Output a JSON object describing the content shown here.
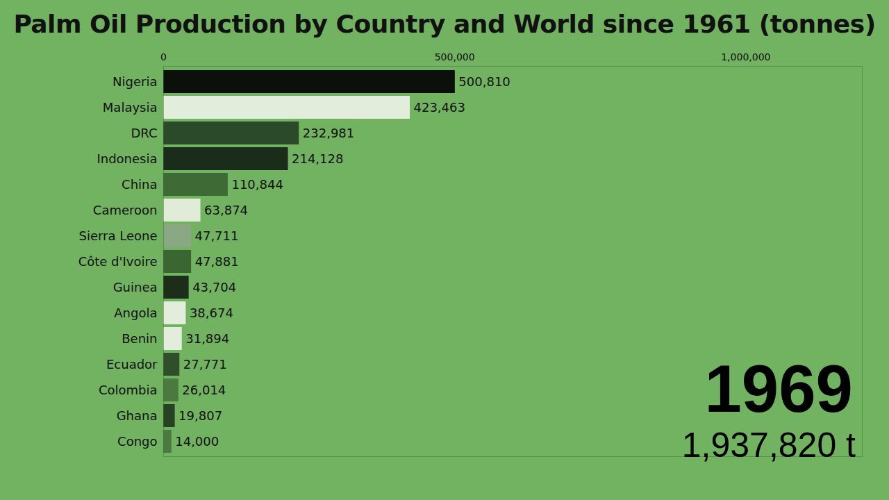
{
  "chart_data": {
    "type": "bar",
    "orientation": "horizontal",
    "title": "Palm Oil Production by Country and World since 1961 (tonnes)",
    "annotations": [
      "1969",
      "1,937,820 t"
    ],
    "categories": [
      "Nigeria",
      "Malaysia",
      "DRC",
      "Indonesia",
      "China",
      "Cameroon",
      "Sierra Leone",
      "Côte d'Ivoire",
      "Guinea",
      "Angola",
      "Benin",
      "Ecuador",
      "Colombia",
      "Ghana",
      "Congo"
    ],
    "values": [
      500810,
      423463,
      232981,
      214128,
      110844,
      63874,
      47711,
      47881,
      43704,
      38674,
      31894,
      27771,
      26014,
      19807,
      14000
    ],
    "value_labels": [
      "500,810",
      "423,463",
      "232,981",
      "214,128",
      "110,844",
      "63,874",
      "47,711",
      "47,881",
      "43,704",
      "38,674",
      "31,894",
      "27,771",
      "26,014",
      "19,807",
      "14,000"
    ],
    "colors": [
      "#0b100b",
      "#e2eedb",
      "#2b4a2a",
      "#1a2d1a",
      "#3e6b35",
      "#e0ecd8",
      "#8aa884",
      "#3a6632",
      "#1c2e1a",
      "#e2eedb",
      "#e2eedb",
      "#2f4f2a",
      "#4a7a40",
      "#264222",
      "#4a7a40"
    ],
    "xlim": [
      0,
      1200000
    ],
    "xticks": [
      0,
      {
        "value": 500000,
        "label": "500,000"
      },
      {
        "value": 1000000,
        "label": "1,000,000"
      }
    ],
    "data_labels": true,
    "grid": false
  }
}
